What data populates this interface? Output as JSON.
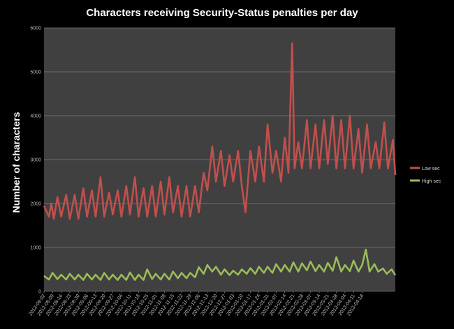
{
  "chart_data": {
    "type": "line",
    "title": "Characters receiving Security-Status penalties per day",
    "xlabel": "",
    "ylabel": "Number of characters",
    "ylim": [
      0,
      6000
    ],
    "yticks": [
      "0",
      "1000",
      "2000",
      "3000",
      "4000",
      "5000",
      "6000"
    ],
    "grid": true,
    "legend_position": "right",
    "background": "#404040",
    "tick_dates": [
      "2012-08-02",
      "2012-08-09",
      "2012-08-16",
      "2012-08-23",
      "2012-08-30",
      "2012-09-06",
      "2012-09-13",
      "2012-09-20",
      "2012-09-27",
      "2012-10-04",
      "2012-10-11",
      "2012-10-18",
      "2012-10-25",
      "2012-11-01",
      "2012-11-08",
      "2012-11-15",
      "2012-11-22",
      "2012-11-29",
      "2012-12-06",
      "2012-12-13",
      "2012-12-20",
      "2012-12-27",
      "2013-01-03",
      "2013-01-10",
      "2013-01-17",
      "2013-01-24",
      "2013-01-31",
      "2013-02-07",
      "2013-02-14",
      "2013-02-21",
      "2013-02-28",
      "2013-03-07",
      "2013-03-14",
      "2013-03-21",
      "2013-03-28",
      "2013-04-04",
      "2013-04-11",
      "2013-04-18"
    ],
    "xtick_labels": [
      "2012-08-02",
      "2012-08-09",
      "2012-08-16",
      "2012-08-23",
      "2012-08-30",
      "2012-09-06",
      "2012-09-13",
      "2012-09-20",
      "2012-09-27",
      "2012-10-04",
      "2012-10-11",
      "2012-10-18",
      "2012-10-25",
      "2012-11-01",
      "2012-11-08",
      "2012-11-15",
      "2012-11-22",
      "2012-11-29",
      "2012-12-06",
      "2012-12-13",
      "2012-12-20",
      "2012-12-27",
      "2013-01-03",
      "2013-01-10",
      "2013-01-17",
      "2013-01-24",
      "2013-01-31",
      "2013-02-07",
      "2013-02-14",
      "2013-02-21",
      "2013-02-28",
      "2013-03-07",
      "2013-03-14",
      "2013-03-21",
      "2013-03-28",
      "2013-04-04",
      "2013-04-11",
      "2013-04-18"
    ],
    "series": [
      {
        "name": "Low sec",
        "color": "#c0504d",
        "points": [
          [
            "2012-08-02",
            1950
          ],
          [
            "2012-08-06",
            1700
          ],
          [
            "2012-08-08",
            2000
          ],
          [
            "2012-08-10",
            1650
          ],
          [
            "2012-08-13",
            2150
          ],
          [
            "2012-08-16",
            1700
          ],
          [
            "2012-08-20",
            2200
          ],
          [
            "2012-08-23",
            1650
          ],
          [
            "2012-08-27",
            2200
          ],
          [
            "2012-08-30",
            1650
          ],
          [
            "2012-09-03",
            2350
          ],
          [
            "2012-09-06",
            1700
          ],
          [
            "2012-09-10",
            2300
          ],
          [
            "2012-09-13",
            1700
          ],
          [
            "2012-09-17",
            2600
          ],
          [
            "2012-09-20",
            1700
          ],
          [
            "2012-09-24",
            2250
          ],
          [
            "2012-09-27",
            1750
          ],
          [
            "2012-10-01",
            2300
          ],
          [
            "2012-10-04",
            1700
          ],
          [
            "2012-10-08",
            2400
          ],
          [
            "2012-10-11",
            1750
          ],
          [
            "2012-10-15",
            2600
          ],
          [
            "2012-10-18",
            1700
          ],
          [
            "2012-10-22",
            2350
          ],
          [
            "2012-10-25",
            1700
          ],
          [
            "2012-10-29",
            2400
          ],
          [
            "2012-11-01",
            1700
          ],
          [
            "2012-11-05",
            2500
          ],
          [
            "2012-11-08",
            1750
          ],
          [
            "2012-11-12",
            2600
          ],
          [
            "2012-11-15",
            1800
          ],
          [
            "2012-11-19",
            2400
          ],
          [
            "2012-11-22",
            1700
          ],
          [
            "2012-11-26",
            2400
          ],
          [
            "2012-11-29",
            1700
          ],
          [
            "2012-12-03",
            2400
          ],
          [
            "2012-12-06",
            1800
          ],
          [
            "2012-12-10",
            2700
          ],
          [
            "2012-12-13",
            2300
          ],
          [
            "2012-12-17",
            3300
          ],
          [
            "2012-12-20",
            2500
          ],
          [
            "2012-12-24",
            3200
          ],
          [
            "2012-12-27",
            2400
          ],
          [
            "2012-12-31",
            3100
          ],
          [
            "2013-01-03",
            2500
          ],
          [
            "2013-01-07",
            3200
          ],
          [
            "2013-01-10",
            2400
          ],
          [
            "2013-01-13",
            1800
          ],
          [
            "2013-01-17",
            3200
          ],
          [
            "2013-01-21",
            2500
          ],
          [
            "2013-01-24",
            3300
          ],
          [
            "2013-01-28",
            2500
          ],
          [
            "2013-01-31",
            3800
          ],
          [
            "2013-02-04",
            2700
          ],
          [
            "2013-02-07",
            3200
          ],
          [
            "2013-02-11",
            2500
          ],
          [
            "2013-02-14",
            3500
          ],
          [
            "2013-02-17",
            2700
          ],
          [
            "2013-02-20",
            5650
          ],
          [
            "2013-02-22",
            2800
          ],
          [
            "2013-02-25",
            3400
          ],
          [
            "2013-02-28",
            2800
          ],
          [
            "2013-03-04",
            3900
          ],
          [
            "2013-03-07",
            2800
          ],
          [
            "2013-03-11",
            3800
          ],
          [
            "2013-03-14",
            2800
          ],
          [
            "2013-03-18",
            3900
          ],
          [
            "2013-03-21",
            2900
          ],
          [
            "2013-03-25",
            4000
          ],
          [
            "2013-03-28",
            2800
          ],
          [
            "2013-04-01",
            3900
          ],
          [
            "2013-04-04",
            2800
          ],
          [
            "2013-04-08",
            4000
          ],
          [
            "2013-04-11",
            2800
          ],
          [
            "2013-04-15",
            3700
          ],
          [
            "2013-04-18",
            2700
          ],
          [
            "2013-04-22",
            3800
          ],
          [
            "2013-04-25",
            2800
          ],
          [
            "2013-04-29",
            3400
          ],
          [
            "2013-05-02",
            2800
          ],
          [
            "2013-05-06",
            3850
          ],
          [
            "2013-05-09",
            2800
          ],
          [
            "2013-05-13",
            3450
          ],
          [
            "2013-05-15",
            2650
          ]
        ]
      },
      {
        "name": "High sec",
        "color": "#9bbb59",
        "points": [
          [
            "2012-08-02",
            350
          ],
          [
            "2012-08-06",
            270
          ],
          [
            "2012-08-09",
            420
          ],
          [
            "2012-08-13",
            280
          ],
          [
            "2012-08-16",
            380
          ],
          [
            "2012-08-20",
            270
          ],
          [
            "2012-08-23",
            400
          ],
          [
            "2012-08-27",
            270
          ],
          [
            "2012-08-30",
            380
          ],
          [
            "2012-09-03",
            260
          ],
          [
            "2012-09-06",
            400
          ],
          [
            "2012-09-10",
            270
          ],
          [
            "2012-09-13",
            380
          ],
          [
            "2012-09-17",
            260
          ],
          [
            "2012-09-20",
            420
          ],
          [
            "2012-09-24",
            270
          ],
          [
            "2012-09-27",
            380
          ],
          [
            "2012-10-01",
            260
          ],
          [
            "2012-10-04",
            380
          ],
          [
            "2012-10-08",
            260
          ],
          [
            "2012-10-11",
            430
          ],
          [
            "2012-10-15",
            260
          ],
          [
            "2012-10-18",
            380
          ],
          [
            "2012-10-22",
            260
          ],
          [
            "2012-10-25",
            500
          ],
          [
            "2012-10-29",
            280
          ],
          [
            "2012-11-01",
            400
          ],
          [
            "2012-11-05",
            270
          ],
          [
            "2012-11-08",
            400
          ],
          [
            "2012-11-12",
            270
          ],
          [
            "2012-11-15",
            450
          ],
          [
            "2012-11-19",
            300
          ],
          [
            "2012-11-22",
            420
          ],
          [
            "2012-11-26",
            300
          ],
          [
            "2012-11-29",
            420
          ],
          [
            "2012-12-03",
            320
          ],
          [
            "2012-12-06",
            550
          ],
          [
            "2012-12-10",
            400
          ],
          [
            "2012-12-13",
            600
          ],
          [
            "2012-12-17",
            450
          ],
          [
            "2012-12-20",
            560
          ],
          [
            "2012-12-24",
            380
          ],
          [
            "2012-12-27",
            500
          ],
          [
            "2012-12-31",
            370
          ],
          [
            "2013-01-03",
            470
          ],
          [
            "2013-01-07",
            380
          ],
          [
            "2013-01-10",
            500
          ],
          [
            "2013-01-14",
            400
          ],
          [
            "2013-01-17",
            530
          ],
          [
            "2013-01-21",
            400
          ],
          [
            "2013-01-24",
            560
          ],
          [
            "2013-01-28",
            420
          ],
          [
            "2013-01-31",
            560
          ],
          [
            "2013-02-04",
            420
          ],
          [
            "2013-02-07",
            620
          ],
          [
            "2013-02-11",
            450
          ],
          [
            "2013-02-14",
            600
          ],
          [
            "2013-02-18",
            450
          ],
          [
            "2013-02-21",
            660
          ],
          [
            "2013-02-25",
            450
          ],
          [
            "2013-02-28",
            640
          ],
          [
            "2013-03-04",
            480
          ],
          [
            "2013-03-07",
            680
          ],
          [
            "2013-03-11",
            460
          ],
          [
            "2013-03-14",
            600
          ],
          [
            "2013-03-18",
            450
          ],
          [
            "2013-03-21",
            650
          ],
          [
            "2013-03-25",
            470
          ],
          [
            "2013-03-28",
            780
          ],
          [
            "2013-04-01",
            450
          ],
          [
            "2013-04-04",
            600
          ],
          [
            "2013-04-08",
            460
          ],
          [
            "2013-04-11",
            700
          ],
          [
            "2013-04-15",
            450
          ],
          [
            "2013-04-18",
            600
          ],
          [
            "2013-04-21",
            950
          ],
          [
            "2013-04-24",
            450
          ],
          [
            "2013-04-28",
            620
          ],
          [
            "2013-05-01",
            450
          ],
          [
            "2013-05-05",
            520
          ],
          [
            "2013-05-08",
            400
          ],
          [
            "2013-05-12",
            500
          ],
          [
            "2013-05-15",
            370
          ]
        ]
      }
    ]
  }
}
